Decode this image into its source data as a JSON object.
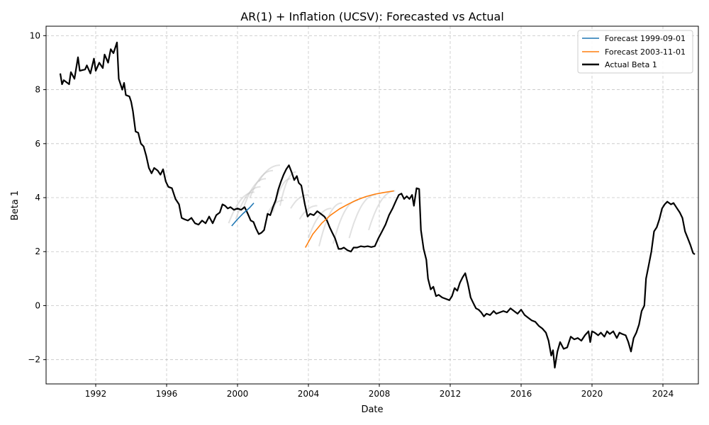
{
  "chart_data": {
    "type": "line",
    "title": "AR(1) + Inflation (UCSV): Forecasted vs Actual",
    "xlabel": "Date",
    "ylabel": "Beta 1",
    "xlim": [
      1989.2,
      2026.0
    ],
    "ylim": [
      -2.9,
      10.35
    ],
    "x_ticks": [
      1992,
      1996,
      2000,
      2004,
      2008,
      2012,
      2016,
      2020,
      2024
    ],
    "x_tick_labels": [
      "1992",
      "1996",
      "2000",
      "2004",
      "2008",
      "2012",
      "2016",
      "2020",
      "2024"
    ],
    "y_ticks": [
      -2,
      0,
      2,
      4,
      6,
      8,
      10
    ],
    "y_tick_labels": [
      "−2",
      "0",
      "2",
      "4",
      "6",
      "8",
      "10"
    ],
    "grid": true,
    "legend_position": "top-right",
    "colors": {
      "forecast_1999": "#1f77b4",
      "forecast_2003": "#ff7f0e",
      "actual": "#000000",
      "background_forecasts": "#bdbdbd",
      "grid": "#b0b0b0"
    },
    "series": [
      {
        "name": "Forecast 1999-09-01",
        "color": "#1f77b4",
        "points": [
          [
            1999.67,
            2.95
          ],
          [
            2000.0,
            3.2
          ],
          [
            2000.33,
            3.42
          ],
          [
            2000.67,
            3.62
          ],
          [
            2000.92,
            3.8
          ]
        ]
      },
      {
        "name": "Forecast 2003-11-01",
        "color": "#ff7f0e",
        "points": [
          [
            2003.83,
            2.15
          ],
          [
            2004.25,
            2.65
          ],
          [
            2004.75,
            3.05
          ],
          [
            2005.25,
            3.35
          ],
          [
            2005.75,
            3.58
          ],
          [
            2006.25,
            3.76
          ],
          [
            2006.75,
            3.92
          ],
          [
            2007.25,
            4.04
          ],
          [
            2007.75,
            4.13
          ],
          [
            2008.25,
            4.19
          ],
          [
            2008.83,
            4.25
          ]
        ]
      },
      {
        "name": "Actual Beta 1",
        "color": "#000000",
        "points": [
          [
            1990.0,
            8.6
          ],
          [
            1990.1,
            8.2
          ],
          [
            1990.2,
            8.35
          ],
          [
            1990.5,
            8.2
          ],
          [
            1990.6,
            8.65
          ],
          [
            1990.8,
            8.4
          ],
          [
            1991.0,
            9.2
          ],
          [
            1991.1,
            8.7
          ],
          [
            1991.4,
            8.75
          ],
          [
            1991.5,
            8.9
          ],
          [
            1991.7,
            8.6
          ],
          [
            1991.9,
            9.15
          ],
          [
            1992.0,
            8.7
          ],
          [
            1992.2,
            9.0
          ],
          [
            1992.4,
            8.8
          ],
          [
            1992.5,
            9.3
          ],
          [
            1992.7,
            9.0
          ],
          [
            1992.85,
            9.5
          ],
          [
            1993.0,
            9.35
          ],
          [
            1993.2,
            9.75
          ],
          [
            1993.3,
            8.4
          ],
          [
            1993.5,
            8.0
          ],
          [
            1993.6,
            8.25
          ],
          [
            1993.7,
            7.8
          ],
          [
            1993.9,
            7.75
          ],
          [
            1994.0,
            7.55
          ],
          [
            1994.1,
            7.2
          ],
          [
            1994.25,
            6.45
          ],
          [
            1994.4,
            6.4
          ],
          [
            1994.55,
            6.0
          ],
          [
            1994.7,
            5.9
          ],
          [
            1994.85,
            5.55
          ],
          [
            1995.0,
            5.1
          ],
          [
            1995.15,
            4.9
          ],
          [
            1995.3,
            5.1
          ],
          [
            1995.5,
            5.0
          ],
          [
            1995.65,
            4.85
          ],
          [
            1995.8,
            5.05
          ],
          [
            1995.95,
            4.6
          ],
          [
            1996.1,
            4.4
          ],
          [
            1996.3,
            4.35
          ],
          [
            1996.5,
            3.95
          ],
          [
            1996.7,
            3.75
          ],
          [
            1996.85,
            3.25
          ],
          [
            1997.0,
            3.2
          ],
          [
            1997.2,
            3.15
          ],
          [
            1997.4,
            3.25
          ],
          [
            1997.6,
            3.05
          ],
          [
            1997.8,
            3.0
          ],
          [
            1998.0,
            3.15
          ],
          [
            1998.2,
            3.05
          ],
          [
            1998.4,
            3.3
          ],
          [
            1998.6,
            3.05
          ],
          [
            1998.8,
            3.35
          ],
          [
            1999.0,
            3.45
          ],
          [
            1999.15,
            3.75
          ],
          [
            1999.3,
            3.7
          ],
          [
            1999.45,
            3.6
          ],
          [
            1999.6,
            3.65
          ],
          [
            1999.8,
            3.55
          ],
          [
            2000.0,
            3.6
          ],
          [
            2000.2,
            3.55
          ],
          [
            2000.4,
            3.65
          ],
          [
            2000.55,
            3.45
          ],
          [
            2000.75,
            3.15
          ],
          [
            2000.9,
            3.1
          ],
          [
            2001.05,
            2.85
          ],
          [
            2001.2,
            2.65
          ],
          [
            2001.35,
            2.7
          ],
          [
            2001.5,
            2.8
          ],
          [
            2001.7,
            3.4
          ],
          [
            2001.85,
            3.35
          ],
          [
            2002.0,
            3.65
          ],
          [
            2002.15,
            3.9
          ],
          [
            2002.3,
            4.3
          ],
          [
            2002.45,
            4.6
          ],
          [
            2002.6,
            4.85
          ],
          [
            2002.75,
            5.05
          ],
          [
            2002.9,
            5.2
          ],
          [
            2003.05,
            4.95
          ],
          [
            2003.2,
            4.65
          ],
          [
            2003.35,
            4.8
          ],
          [
            2003.45,
            4.55
          ],
          [
            2003.6,
            4.45
          ],
          [
            2003.8,
            3.75
          ],
          [
            2003.95,
            3.3
          ],
          [
            2004.1,
            3.4
          ],
          [
            2004.3,
            3.35
          ],
          [
            2004.5,
            3.5
          ],
          [
            2004.7,
            3.4
          ],
          [
            2004.9,
            3.3
          ],
          [
            2005.05,
            3.15
          ],
          [
            2005.2,
            2.9
          ],
          [
            2005.35,
            2.7
          ],
          [
            2005.5,
            2.5
          ],
          [
            2005.7,
            2.1
          ],
          [
            2005.85,
            2.1
          ],
          [
            2006.0,
            2.15
          ],
          [
            2006.2,
            2.05
          ],
          [
            2006.4,
            2.0
          ],
          [
            2006.55,
            2.15
          ],
          [
            2006.75,
            2.15
          ],
          [
            2006.95,
            2.2
          ],
          [
            2007.15,
            2.18
          ],
          [
            2007.35,
            2.2
          ],
          [
            2007.55,
            2.17
          ],
          [
            2007.75,
            2.2
          ],
          [
            2007.95,
            2.5
          ],
          [
            2008.15,
            2.75
          ],
          [
            2008.35,
            3.0
          ],
          [
            2008.55,
            3.35
          ],
          [
            2008.75,
            3.6
          ],
          [
            2008.95,
            3.9
          ],
          [
            2009.1,
            4.1
          ],
          [
            2009.25,
            4.15
          ],
          [
            2009.4,
            3.95
          ],
          [
            2009.55,
            4.05
          ],
          [
            2009.7,
            3.95
          ],
          [
            2009.85,
            4.1
          ],
          [
            2009.95,
            3.7
          ],
          [
            2010.1,
            4.35
          ],
          [
            2010.25,
            4.32
          ],
          [
            2010.35,
            2.8
          ],
          [
            2010.5,
            2.1
          ],
          [
            2010.65,
            1.7
          ],
          [
            2010.75,
            1.0
          ],
          [
            2010.9,
            0.6
          ],
          [
            2011.05,
            0.7
          ],
          [
            2011.2,
            0.35
          ],
          [
            2011.35,
            0.4
          ],
          [
            2011.55,
            0.3
          ],
          [
            2011.75,
            0.25
          ],
          [
            2011.95,
            0.2
          ],
          [
            2012.1,
            0.35
          ],
          [
            2012.25,
            0.65
          ],
          [
            2012.4,
            0.55
          ],
          [
            2012.55,
            0.85
          ],
          [
            2012.7,
            1.05
          ],
          [
            2012.85,
            1.2
          ],
          [
            2013.0,
            0.8
          ],
          [
            2013.15,
            0.3
          ],
          [
            2013.3,
            0.1
          ],
          [
            2013.45,
            -0.1
          ],
          [
            2013.6,
            -0.15
          ],
          [
            2013.75,
            -0.25
          ],
          [
            2013.9,
            -0.4
          ],
          [
            2014.05,
            -0.3
          ],
          [
            2014.25,
            -0.35
          ],
          [
            2014.45,
            -0.2
          ],
          [
            2014.6,
            -0.3
          ],
          [
            2014.8,
            -0.25
          ],
          [
            2015.0,
            -0.2
          ],
          [
            2015.2,
            -0.25
          ],
          [
            2015.4,
            -0.1
          ],
          [
            2015.6,
            -0.2
          ],
          [
            2015.8,
            -0.3
          ],
          [
            2016.0,
            -0.15
          ],
          [
            2016.2,
            -0.35
          ],
          [
            2016.4,
            -0.45
          ],
          [
            2016.6,
            -0.55
          ],
          [
            2016.8,
            -0.6
          ],
          [
            2017.0,
            -0.75
          ],
          [
            2017.2,
            -0.85
          ],
          [
            2017.4,
            -1.0
          ],
          [
            2017.55,
            -1.3
          ],
          [
            2017.7,
            -1.85
          ],
          [
            2017.8,
            -1.65
          ],
          [
            2017.9,
            -2.3
          ],
          [
            2018.05,
            -1.7
          ],
          [
            2018.2,
            -1.35
          ],
          [
            2018.4,
            -1.6
          ],
          [
            2018.6,
            -1.55
          ],
          [
            2018.8,
            -1.15
          ],
          [
            2019.0,
            -1.25
          ],
          [
            2019.2,
            -1.2
          ],
          [
            2019.4,
            -1.3
          ],
          [
            2019.6,
            -1.1
          ],
          [
            2019.8,
            -0.95
          ],
          [
            2019.9,
            -1.35
          ],
          [
            2020.0,
            -0.95
          ],
          [
            2020.15,
            -1.0
          ],
          [
            2020.35,
            -1.1
          ],
          [
            2020.5,
            -1.0
          ],
          [
            2020.7,
            -1.15
          ],
          [
            2020.85,
            -0.95
          ],
          [
            2021.0,
            -1.05
          ],
          [
            2021.2,
            -0.95
          ],
          [
            2021.4,
            -1.2
          ],
          [
            2021.55,
            -1.0
          ],
          [
            2021.7,
            -1.05
          ],
          [
            2021.9,
            -1.1
          ],
          [
            2022.05,
            -1.35
          ],
          [
            2022.2,
            -1.7
          ],
          [
            2022.35,
            -1.2
          ],
          [
            2022.5,
            -1.0
          ],
          [
            2022.65,
            -0.7
          ],
          [
            2022.8,
            -0.2
          ],
          [
            2022.95,
            0.0
          ],
          [
            2023.05,
            1.0
          ],
          [
            2023.2,
            1.5
          ],
          [
            2023.35,
            2.0
          ],
          [
            2023.5,
            2.75
          ],
          [
            2023.65,
            2.9
          ],
          [
            2023.8,
            3.2
          ],
          [
            2023.95,
            3.6
          ],
          [
            2024.1,
            3.75
          ],
          [
            2024.25,
            3.85
          ],
          [
            2024.45,
            3.75
          ],
          [
            2024.6,
            3.8
          ],
          [
            2024.8,
            3.6
          ],
          [
            2024.95,
            3.45
          ],
          [
            2025.1,
            3.25
          ],
          [
            2025.25,
            2.75
          ],
          [
            2025.4,
            2.5
          ],
          [
            2025.55,
            2.25
          ],
          [
            2025.7,
            1.95
          ],
          [
            2025.8,
            1.9
          ]
        ]
      }
    ],
    "background_forecasts": [
      {
        "start": [
          1999.5,
          3.05
        ],
        "end": 2000.95,
        "target": 4.2
      },
      {
        "start": [
          1999.9,
          3.2
        ],
        "end": 2001.3,
        "target": 4.4
      },
      {
        "start": [
          2000.3,
          3.55
        ],
        "end": 2001.6,
        "target": 4.7
      },
      {
        "start": [
          2000.7,
          4.0
        ],
        "end": 2002.0,
        "target": 5.0
      },
      {
        "start": [
          2001.2,
          4.6
        ],
        "end": 2002.4,
        "target": 5.2
      },
      {
        "start": [
          2001.6,
          3.3
        ],
        "end": 2002.6,
        "target": 3.9
      },
      {
        "start": [
          2002.0,
          3.45
        ],
        "end": 2003.0,
        "target": 4.7
      },
      {
        "start": [
          2002.4,
          3.7
        ],
        "end": 2003.3,
        "target": 4.95
      },
      {
        "start": [
          2003.0,
          3.6
        ],
        "end": 2004.0,
        "target": 4.1
      },
      {
        "start": [
          2003.5,
          3.2
        ],
        "end": 2004.5,
        "target": 3.7
      },
      {
        "start": [
          2004.0,
          2.5
        ],
        "end": 2005.3,
        "target": 3.6
      },
      {
        "start": [
          2004.6,
          2.2
        ],
        "end": 2005.9,
        "target": 3.8
      },
      {
        "start": [
          2005.4,
          2.3
        ],
        "end": 2006.8,
        "target": 3.9
      },
      {
        "start": [
          2006.3,
          2.5
        ],
        "end": 2007.8,
        "target": 4.1
      },
      {
        "start": [
          2007.4,
          2.8
        ],
        "end": 2008.9,
        "target": 4.25
      }
    ]
  }
}
